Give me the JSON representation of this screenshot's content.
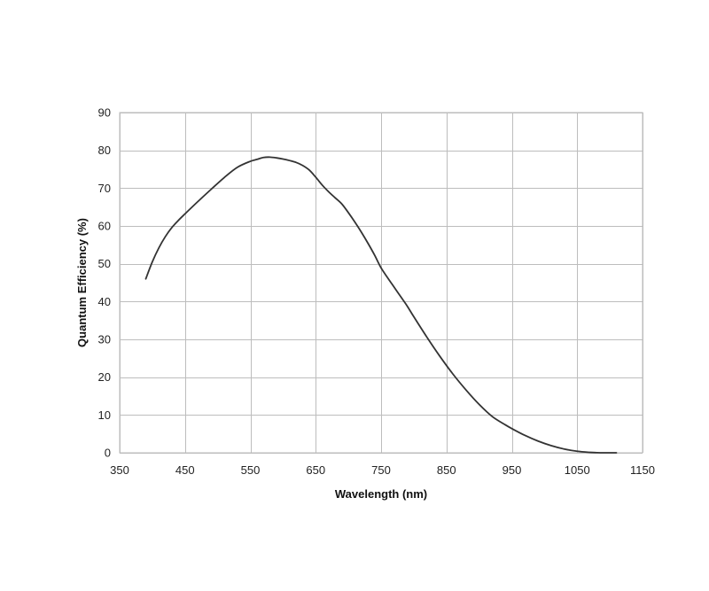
{
  "chart_data": {
    "type": "line",
    "title": "",
    "xlabel": "Wavelength (nm)",
    "ylabel": "Quantum Efficiency (%)",
    "xlim": [
      350,
      1150
    ],
    "ylim": [
      0,
      90
    ],
    "xticks": [
      350,
      450,
      550,
      650,
      750,
      850,
      950,
      1050,
      1150
    ],
    "yticks": [
      0,
      10,
      20,
      30,
      40,
      50,
      60,
      70,
      80,
      90
    ],
    "grid": true,
    "legend": "none",
    "series": [
      {
        "color": "#333333",
        "x": [
          390,
          400,
          410,
          420,
          430,
          440,
          450,
          470,
          490,
          510,
          530,
          550,
          560,
          570,
          580,
          590,
          600,
          610,
          620,
          630,
          640,
          650,
          660,
          670,
          680,
          690,
          700,
          710,
          720,
          730,
          740,
          750,
          760,
          770,
          780,
          790,
          800,
          820,
          840,
          860,
          880,
          900,
          920,
          940,
          950,
          970,
          990,
          1010,
          1030,
          1050,
          1070,
          1080,
          1090,
          1110
        ],
        "y": [
          46,
          50.5,
          54.2,
          57.2,
          59.6,
          61.5,
          63.2,
          66.5,
          69.7,
          72.8,
          75.5,
          77.1,
          77.6,
          78.1,
          78.2,
          78.0,
          77.7,
          77.3,
          76.8,
          76.0,
          74.8,
          72.9,
          70.8,
          69.0,
          67.4,
          65.8,
          63.5,
          61.0,
          58.3,
          55.4,
          52.3,
          48.9,
          46.3,
          43.8,
          41.3,
          38.8,
          36.0,
          30.6,
          25.5,
          20.8,
          16.6,
          12.8,
          9.6,
          7.4,
          6.4,
          4.6,
          3.1,
          1.9,
          1.0,
          0.4,
          0.1,
          0.03,
          0.0,
          0.0
        ]
      }
    ]
  }
}
